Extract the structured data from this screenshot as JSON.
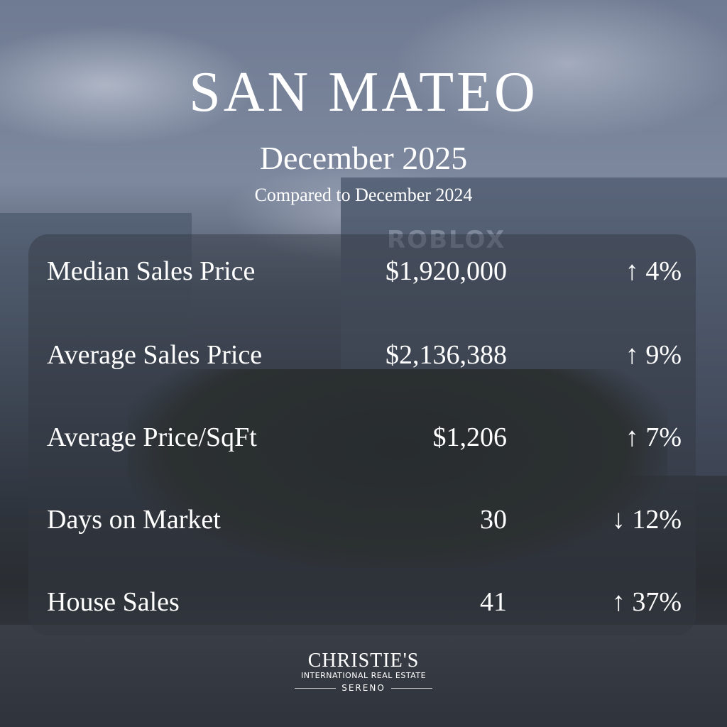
{
  "header": {
    "title": "SAN MATEO",
    "period": "December 2025",
    "comparison": "Compared to December 2024"
  },
  "background": {
    "sign_text": "ROBLOX"
  },
  "stats": [
    {
      "label": "Median Sales Price",
      "value": "$1,920,000",
      "change": "↑ 4%",
      "direction": "up"
    },
    {
      "label": "Average Sales Price",
      "value": "$2,136,388",
      "change": "↑ 9%",
      "direction": "up"
    },
    {
      "label": "Average Price/SqFt",
      "value": "$1,206",
      "change": "↑ 7%",
      "direction": "up"
    },
    {
      "label": "Days on Market",
      "value": "30",
      "change": "↓ 12%",
      "direction": "down"
    },
    {
      "label": "House Sales",
      "value": "41",
      "change": "↑ 37%",
      "direction": "up"
    }
  ],
  "logo": {
    "name": "CHRISTIE'S",
    "line2": "INTERNATIONAL REAL ESTATE",
    "line3": "SERENO"
  }
}
